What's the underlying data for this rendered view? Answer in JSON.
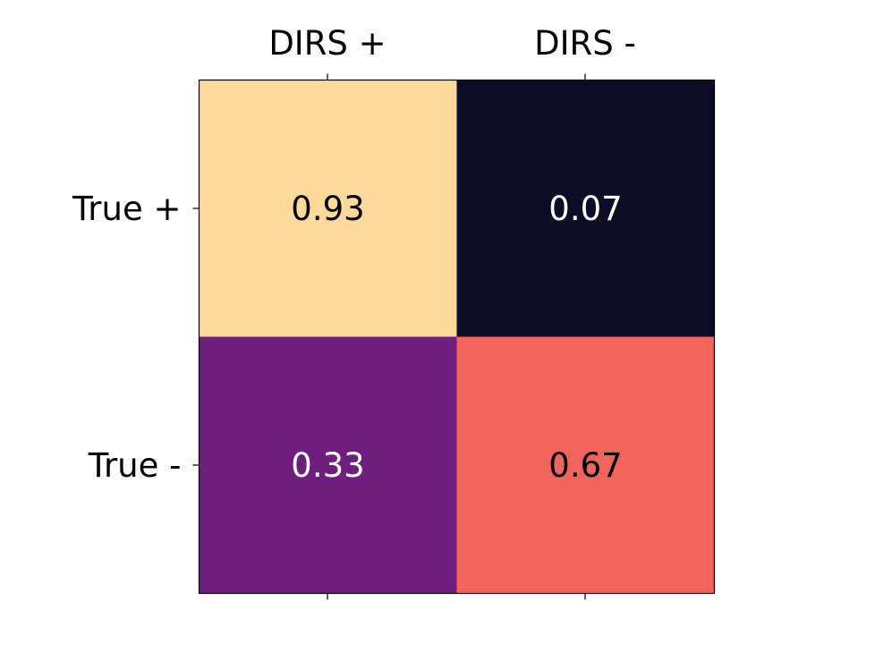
{
  "chart_data": {
    "type": "heatmap",
    "title": "",
    "xlabel": "",
    "ylabel": "",
    "x_categories": [
      "DIRS +",
      "DIRS -"
    ],
    "y_categories": [
      "True +",
      "True -"
    ],
    "values": [
      [
        0.93,
        0.07
      ],
      [
        0.33,
        0.67
      ]
    ],
    "value_labels": [
      [
        "0.93",
        "0.07"
      ],
      [
        "0.33",
        "0.67"
      ]
    ],
    "colormap": "magma",
    "cell_colors": [
      [
        "#fdd99b",
        "#0e0b27"
      ],
      [
        "#6e1f7d",
        "#f1645c"
      ]
    ],
    "label_colors": [
      [
        "#000000",
        "#ffffff"
      ],
      [
        "#ffffff",
        "#000000"
      ]
    ],
    "x_tick_position": "top",
    "grid": false,
    "legend": "none"
  }
}
